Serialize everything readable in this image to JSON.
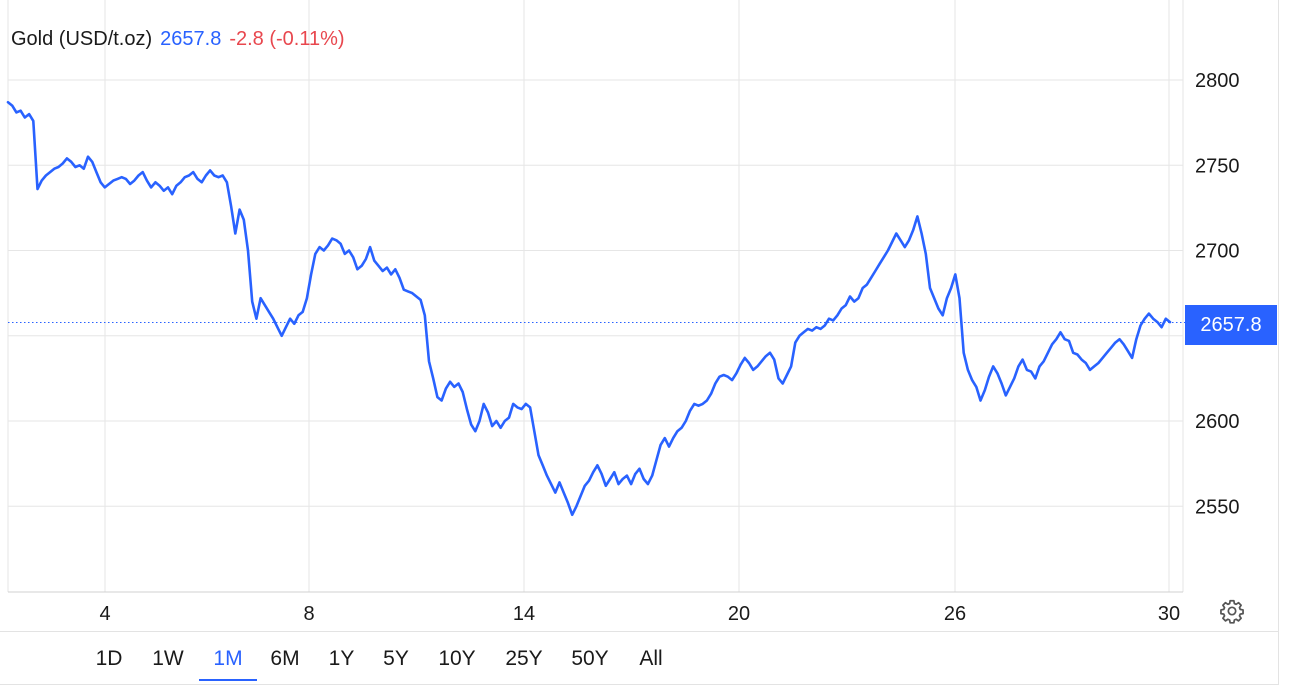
{
  "legend": {
    "instrument": "Gold (USD/t.oz)",
    "price": "2657.8",
    "change": "-2.8 (-0.11%)"
  },
  "price_tag": "2657.8",
  "settings_icon": "gear-icon",
  "range_selector": {
    "options": [
      "1D",
      "1W",
      "1M",
      "6M",
      "1Y",
      "5Y",
      "10Y",
      "25Y",
      "50Y",
      "All"
    ],
    "active": "1M"
  },
  "colors": {
    "line": "#2962ff",
    "negative_change": "#e8474e",
    "grid": "#e6e6e6"
  },
  "chart_data": {
    "type": "line",
    "title": "Gold (USD/t.oz)",
    "x_tick_labels": [
      "4",
      "8",
      "14",
      "20",
      "26",
      "30"
    ],
    "y_tick_labels": [
      "2800",
      "2750",
      "2700",
      "2600",
      "2550"
    ],
    "ylim": [
      2500,
      2820
    ],
    "grid": true,
    "last_price": 2657.8,
    "series": [
      {
        "values": [
          2787,
          2785,
          2781,
          2782,
          2778,
          2780,
          2776,
          2736,
          2741,
          2744,
          2746,
          2748,
          2749,
          2751,
          2754,
          2752,
          2749,
          2750,
          2748,
          2755,
          2752,
          2746,
          2740,
          2737,
          2739,
          2741,
          2742,
          2743,
          2742,
          2739,
          2741,
          2744,
          2746,
          2741,
          2737,
          2740,
          2738,
          2735,
          2737,
          2733,
          2738,
          2740,
          2743,
          2744,
          2746,
          2742,
          2740,
          2744,
          2747,
          2744,
          2743,
          2744,
          2740,
          2726,
          2710,
          2724,
          2718,
          2700,
          2670,
          2660,
          2672,
          2668,
          2664,
          2660,
          2655,
          2650,
          2655,
          2660,
          2657,
          2662,
          2664,
          2672,
          2686,
          2698,
          2702,
          2700,
          2703,
          2707,
          2706,
          2704,
          2698,
          2700,
          2696,
          2689,
          2691,
          2695,
          2702,
          2694,
          2691,
          2688,
          2690,
          2686,
          2689,
          2684,
          2677,
          2676,
          2675,
          2673,
          2671,
          2662,
          2635,
          2625,
          2614,
          2612,
          2619,
          2623,
          2620,
          2622,
          2617,
          2607,
          2598,
          2594,
          2600,
          2610,
          2605,
          2597,
          2600,
          2596,
          2600,
          2602,
          2610,
          2608,
          2607,
          2610,
          2608,
          2594,
          2580,
          2574,
          2568,
          2563,
          2558,
          2564,
          2558,
          2552,
          2545,
          2550,
          2556,
          2562,
          2565,
          2570,
          2574,
          2569,
          2562,
          2566,
          2570,
          2563,
          2566,
          2568,
          2563,
          2569,
          2572,
          2566,
          2563,
          2568,
          2577,
          2586,
          2590,
          2585,
          2590,
          2594,
          2596,
          2600,
          2606,
          2610,
          2609,
          2610,
          2612,
          2616,
          2622,
          2626,
          2627,
          2626,
          2624,
          2628,
          2633,
          2637,
          2634,
          2630,
          2632,
          2635,
          2638,
          2640,
          2636,
          2625,
          2622,
          2627,
          2632,
          2646,
          2650,
          2652,
          2654,
          2653,
          2655,
          2654,
          2656,
          2660,
          2659,
          2662,
          2666,
          2668,
          2673,
          2670,
          2672,
          2678,
          2680,
          2684,
          2688,
          2692,
          2696,
          2700,
          2705,
          2710,
          2706,
          2702,
          2706,
          2712,
          2720,
          2710,
          2698,
          2678,
          2672,
          2666,
          2662,
          2672,
          2678,
          2686,
          2672,
          2640,
          2630,
          2624,
          2620,
          2612,
          2618,
          2626,
          2632,
          2628,
          2622,
          2615,
          2620,
          2625,
          2632,
          2636,
          2630,
          2629,
          2625,
          2632,
          2635,
          2640,
          2645,
          2648,
          2652,
          2648,
          2647,
          2640,
          2639,
          2636,
          2634,
          2630,
          2632,
          2634,
          2637,
          2640,
          2643,
          2646,
          2648,
          2645,
          2641,
          2637,
          2648,
          2656,
          2660,
          2663,
          2660,
          2658,
          2655,
          2660,
          2658
        ]
      }
    ]
  }
}
